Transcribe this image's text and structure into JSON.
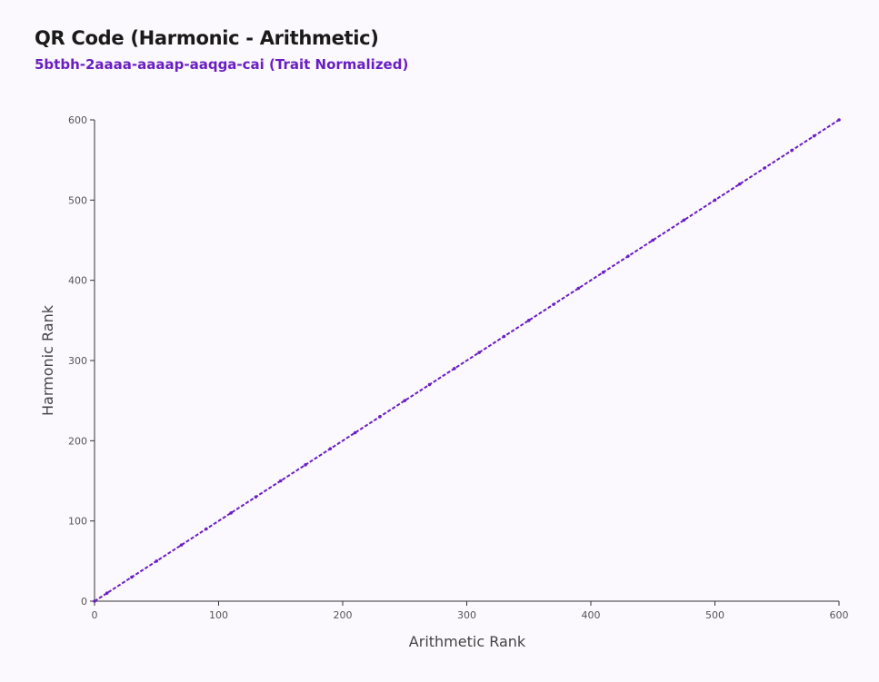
{
  "title": "QR Code (Harmonic - Arithmetic)",
  "subtitle": "5btbh-2aaaa-aaaap-aaqga-cai (Trait Normalized)",
  "colors": {
    "series": "#6a1fc2",
    "axis": "#333333",
    "title": "#1a1a1a",
    "background": "#fbf9fe"
  },
  "chart_data": {
    "type": "scatter",
    "title": "QR Code (Harmonic - Arithmetic)",
    "subtitle": "5btbh-2aaaa-aaaap-aaqga-cai (Trait Normalized)",
    "xlabel": "Arithmetic Rank",
    "ylabel": "Harmonic Rank",
    "xlim": [
      0,
      600
    ],
    "ylim": [
      0,
      600
    ],
    "xticks": [
      0,
      100,
      200,
      300,
      400,
      500,
      600
    ],
    "yticks": [
      0,
      100,
      200,
      300,
      400,
      500,
      600
    ],
    "grid": false,
    "series": [
      {
        "line_style": "dashed",
        "x": [
          0,
          10,
          30,
          50,
          70,
          90,
          110,
          130,
          150,
          170,
          190,
          210,
          230,
          250,
          270,
          290,
          310,
          330,
          350,
          370,
          390,
          410,
          430,
          450,
          475,
          500,
          520,
          540,
          562,
          580,
          600
        ],
        "y": [
          0,
          10,
          30,
          50,
          70,
          90,
          110,
          130,
          150,
          170,
          190,
          210,
          230,
          250,
          270,
          290,
          310,
          330,
          350,
          370,
          390,
          410,
          430,
          450,
          475,
          500,
          520,
          540,
          562,
          580,
          600
        ]
      }
    ]
  }
}
